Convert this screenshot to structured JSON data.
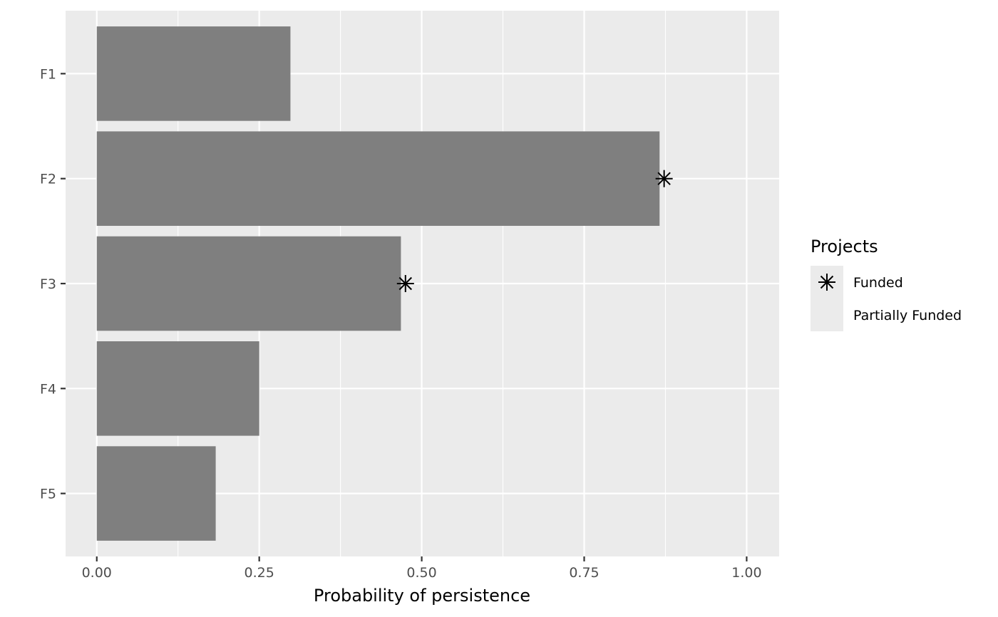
{
  "chart_data": {
    "type": "bar",
    "orientation": "horizontal",
    "categories": [
      "F1",
      "F2",
      "F3",
      "F4",
      "F5"
    ],
    "values": [
      0.298,
      0.866,
      0.468,
      0.25,
      0.183
    ],
    "funded_markers": [
      {
        "category": "F2",
        "value": 0.873
      },
      {
        "category": "F3",
        "value": 0.475
      }
    ],
    "title": "",
    "xlabel": "Probability of persistence",
    "ylabel": "",
    "xlim": [
      -0.048,
      1.05
    ],
    "xticks": [
      0.0,
      0.25,
      0.5,
      0.75,
      1.0
    ],
    "xtick_labels": [
      "0.00",
      "0.25",
      "0.50",
      "0.75",
      "1.00"
    ],
    "grid": true,
    "legend": {
      "title": "Projects",
      "placement": "right",
      "entries": [
        {
          "label": "Funded",
          "marker": "asterisk-icon"
        },
        {
          "label": "Partially Funded",
          "marker": "none"
        }
      ]
    },
    "colors": {
      "panel": "#ebebeb",
      "bar": "#7f7f7f",
      "grid": "#ffffff",
      "marker": "#000000"
    }
  }
}
